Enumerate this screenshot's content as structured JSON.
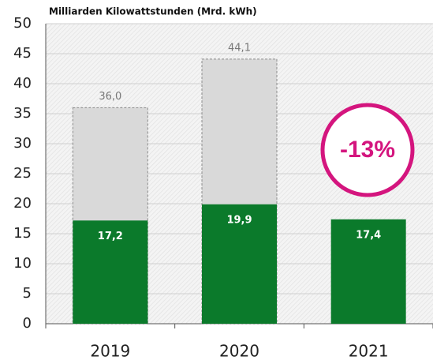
{
  "chart_data": {
    "type": "bar",
    "axis_label": "Milliarden Kilowattstunden (Mrd. kWh)",
    "categories": [
      "2019",
      "2020",
      "2021"
    ],
    "series": [
      {
        "color": "#d9d9d9",
        "values": [
          36.0,
          44.1,
          null
        ],
        "value_labels": [
          "36,0",
          "44,1",
          null
        ]
      },
      {
        "color": "#0b7a2b",
        "values": [
          17.2,
          19.9,
          17.4
        ],
        "value_labels": [
          "17,2",
          "19,9",
          "17,4"
        ]
      }
    ],
    "ylim": [
      0,
      50
    ],
    "yticks": [
      0,
      5,
      10,
      15,
      20,
      25,
      30,
      35,
      40,
      45,
      50
    ],
    "grid": true,
    "annotation": "-13%"
  }
}
